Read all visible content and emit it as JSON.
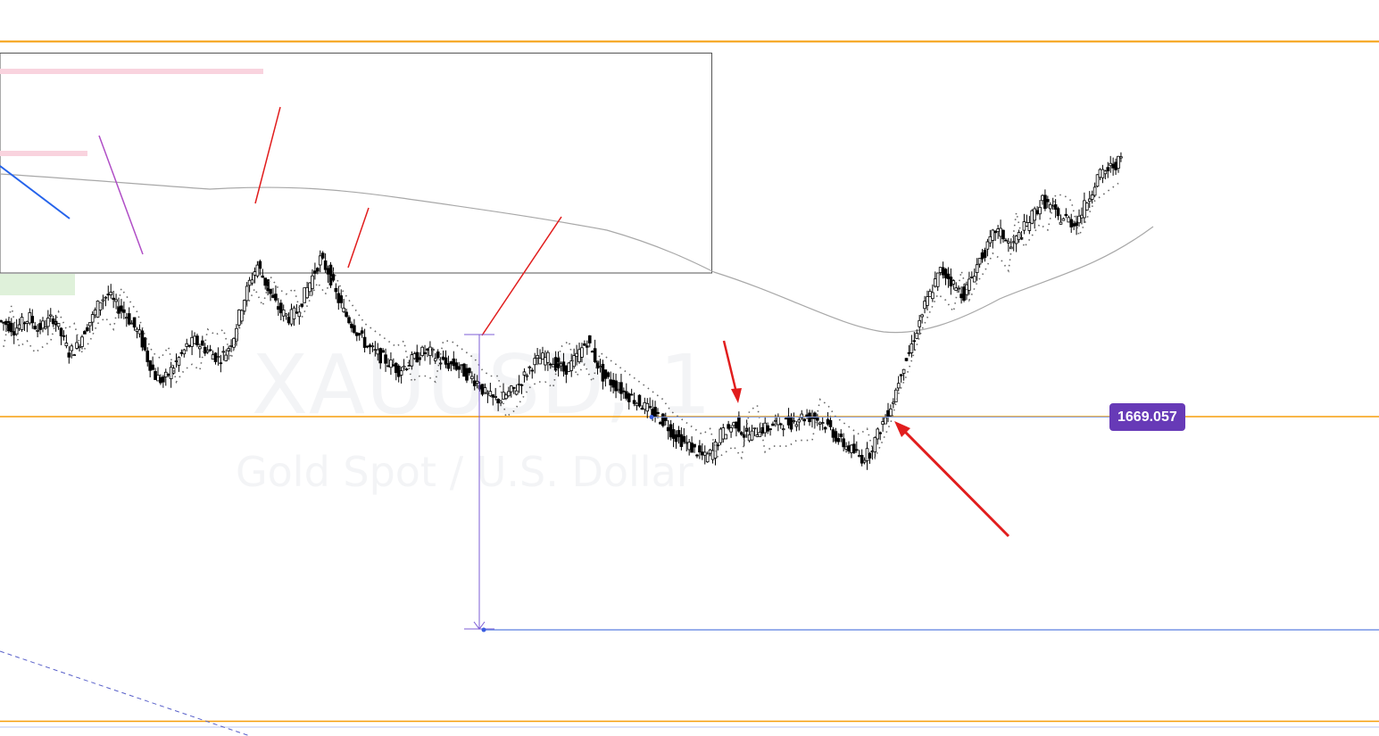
{
  "chart_data": {
    "type": "candlestick",
    "symbol": "XAUUSD, 1",
    "description": "Gold Spot / U.S. Dollar",
    "price_label": "1669.057",
    "colors": {
      "up": "#ffffff",
      "down": "#000000",
      "wick": "#000000",
      "support_line": "#f59e0b",
      "price_tag": "#673ab7",
      "annotation_arrow": "#e11d1d",
      "measure_line": "#7c5cd6",
      "projection_line": "#5b7fe0",
      "moving_average": "#a3a3a3"
    },
    "close_series": [
      1685,
      1684,
      1685,
      1686,
      1684,
      1685,
      1686,
      1683,
      1680,
      1681,
      1684,
      1686,
      1689,
      1690,
      1688,
      1687,
      1685,
      1683,
      1679,
      1676,
      1675,
      1677,
      1679,
      1681,
      1682,
      1681,
      1680,
      1679,
      1680,
      1683,
      1688,
      1692,
      1695,
      1692,
      1689,
      1687,
      1686,
      1687,
      1690,
      1693,
      1696,
      1694,
      1690,
      1687,
      1685,
      1683,
      1681,
      1680,
      1679,
      1678,
      1677,
      1678,
      1679,
      1680,
      1680,
      1679,
      1678,
      1678,
      1677,
      1676,
      1675,
      1673,
      1672,
      1672,
      1673,
      1674,
      1676,
      1678,
      1679,
      1679,
      1678,
      1677,
      1678,
      1680,
      1682,
      1679,
      1676,
      1675,
      1674,
      1673,
      1672,
      1671,
      1670,
      1669,
      1668,
      1666,
      1665,
      1664,
      1663,
      1662,
      1663,
      1666,
      1667,
      1668,
      1666,
      1666,
      1667,
      1667,
      1668,
      1668,
      1668,
      1669,
      1669,
      1669,
      1668,
      1667,
      1665,
      1664,
      1663,
      1662,
      1663,
      1666,
      1669,
      1672,
      1677,
      1680,
      1684,
      1688,
      1691,
      1694,
      1693,
      1691,
      1690,
      1693,
      1696,
      1698,
      1701,
      1700,
      1698,
      1700,
      1702,
      1704,
      1706,
      1705,
      1703,
      1703,
      1702,
      1704,
      1707,
      1710,
      1711,
      1712,
      1713
    ]
  }
}
